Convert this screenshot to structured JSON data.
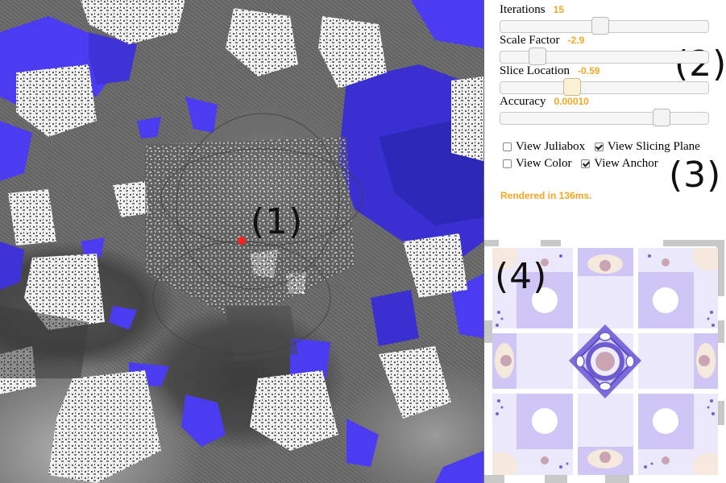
{
  "viewport": {
    "region_label": "(1)"
  },
  "panel": {
    "region_label": "(2)",
    "sliders": [
      {
        "label": "Iterations",
        "value": "15",
        "position": 0.48
      },
      {
        "label": "Scale Factor",
        "value": "-2.9",
        "position": 0.15
      },
      {
        "label": "Slice Location",
        "value": "-0.59",
        "position": 0.33,
        "active": true
      },
      {
        "label": "Accuracy",
        "value": "0.00010",
        "position": 0.8
      }
    ]
  },
  "options": {
    "region_label": "(3)",
    "view_juliabox": {
      "label": "View Juliabox",
      "checked": false
    },
    "view_slicing_plane": {
      "label": "View Slicing Plane",
      "checked": true
    },
    "view_color": {
      "label": "View Color",
      "checked": false
    },
    "view_anchor": {
      "label": "View Anchor",
      "checked": true
    }
  },
  "status": {
    "text": "Rendered in 136ms."
  },
  "preview": {
    "region_label": "(4)"
  },
  "colors": {
    "accent": "#f5a623",
    "fractal_blue": "#4b3cf2",
    "anchor_red": "#ff2020",
    "slice_lavender": "#c9c0f5",
    "slice_mauve": "#c9a5b3",
    "slice_cream": "#f4e9dc"
  }
}
